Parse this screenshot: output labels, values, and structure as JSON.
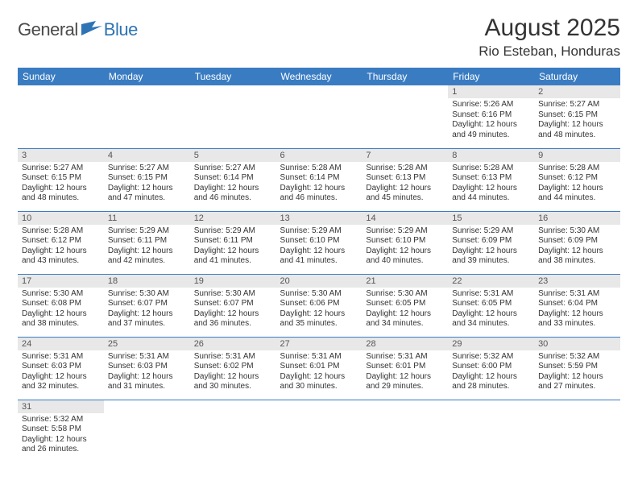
{
  "logo": {
    "general": "General",
    "blue": "Blue"
  },
  "title": "August 2025",
  "location": "Rio Esteban, Honduras",
  "colors": {
    "header_bg": "#3a7cc2",
    "header_text": "#ffffff",
    "daynum_bg": "#e8e8e8",
    "daynum_text": "#555555",
    "body_text": "#333333",
    "rule": "#3a7cc2",
    "logo_gray": "#4a4a4a",
    "logo_blue": "#2e74b5"
  },
  "weekdays": [
    "Sunday",
    "Monday",
    "Tuesday",
    "Wednesday",
    "Thursday",
    "Friday",
    "Saturday"
  ],
  "weeks": [
    [
      null,
      null,
      null,
      null,
      null,
      {
        "n": "1",
        "sr": "5:26 AM",
        "ss": "6:16 PM",
        "dl": "12 hours and 49 minutes."
      },
      {
        "n": "2",
        "sr": "5:27 AM",
        "ss": "6:15 PM",
        "dl": "12 hours and 48 minutes."
      }
    ],
    [
      {
        "n": "3",
        "sr": "5:27 AM",
        "ss": "6:15 PM",
        "dl": "12 hours and 48 minutes."
      },
      {
        "n": "4",
        "sr": "5:27 AM",
        "ss": "6:15 PM",
        "dl": "12 hours and 47 minutes."
      },
      {
        "n": "5",
        "sr": "5:27 AM",
        "ss": "6:14 PM",
        "dl": "12 hours and 46 minutes."
      },
      {
        "n": "6",
        "sr": "5:28 AM",
        "ss": "6:14 PM",
        "dl": "12 hours and 46 minutes."
      },
      {
        "n": "7",
        "sr": "5:28 AM",
        "ss": "6:13 PM",
        "dl": "12 hours and 45 minutes."
      },
      {
        "n": "8",
        "sr": "5:28 AM",
        "ss": "6:13 PM",
        "dl": "12 hours and 44 minutes."
      },
      {
        "n": "9",
        "sr": "5:28 AM",
        "ss": "6:12 PM",
        "dl": "12 hours and 44 minutes."
      }
    ],
    [
      {
        "n": "10",
        "sr": "5:28 AM",
        "ss": "6:12 PM",
        "dl": "12 hours and 43 minutes."
      },
      {
        "n": "11",
        "sr": "5:29 AM",
        "ss": "6:11 PM",
        "dl": "12 hours and 42 minutes."
      },
      {
        "n": "12",
        "sr": "5:29 AM",
        "ss": "6:11 PM",
        "dl": "12 hours and 41 minutes."
      },
      {
        "n": "13",
        "sr": "5:29 AM",
        "ss": "6:10 PM",
        "dl": "12 hours and 41 minutes."
      },
      {
        "n": "14",
        "sr": "5:29 AM",
        "ss": "6:10 PM",
        "dl": "12 hours and 40 minutes."
      },
      {
        "n": "15",
        "sr": "5:29 AM",
        "ss": "6:09 PM",
        "dl": "12 hours and 39 minutes."
      },
      {
        "n": "16",
        "sr": "5:30 AM",
        "ss": "6:09 PM",
        "dl": "12 hours and 38 minutes."
      }
    ],
    [
      {
        "n": "17",
        "sr": "5:30 AM",
        "ss": "6:08 PM",
        "dl": "12 hours and 38 minutes."
      },
      {
        "n": "18",
        "sr": "5:30 AM",
        "ss": "6:07 PM",
        "dl": "12 hours and 37 minutes."
      },
      {
        "n": "19",
        "sr": "5:30 AM",
        "ss": "6:07 PM",
        "dl": "12 hours and 36 minutes."
      },
      {
        "n": "20",
        "sr": "5:30 AM",
        "ss": "6:06 PM",
        "dl": "12 hours and 35 minutes."
      },
      {
        "n": "21",
        "sr": "5:30 AM",
        "ss": "6:05 PM",
        "dl": "12 hours and 34 minutes."
      },
      {
        "n": "22",
        "sr": "5:31 AM",
        "ss": "6:05 PM",
        "dl": "12 hours and 34 minutes."
      },
      {
        "n": "23",
        "sr": "5:31 AM",
        "ss": "6:04 PM",
        "dl": "12 hours and 33 minutes."
      }
    ],
    [
      {
        "n": "24",
        "sr": "5:31 AM",
        "ss": "6:03 PM",
        "dl": "12 hours and 32 minutes."
      },
      {
        "n": "25",
        "sr": "5:31 AM",
        "ss": "6:03 PM",
        "dl": "12 hours and 31 minutes."
      },
      {
        "n": "26",
        "sr": "5:31 AM",
        "ss": "6:02 PM",
        "dl": "12 hours and 30 minutes."
      },
      {
        "n": "27",
        "sr": "5:31 AM",
        "ss": "6:01 PM",
        "dl": "12 hours and 30 minutes."
      },
      {
        "n": "28",
        "sr": "5:31 AM",
        "ss": "6:01 PM",
        "dl": "12 hours and 29 minutes."
      },
      {
        "n": "29",
        "sr": "5:32 AM",
        "ss": "6:00 PM",
        "dl": "12 hours and 28 minutes."
      },
      {
        "n": "30",
        "sr": "5:32 AM",
        "ss": "5:59 PM",
        "dl": "12 hours and 27 minutes."
      }
    ],
    [
      {
        "n": "31",
        "sr": "5:32 AM",
        "ss": "5:58 PM",
        "dl": "12 hours and 26 minutes."
      },
      null,
      null,
      null,
      null,
      null,
      null
    ]
  ],
  "labels": {
    "sunrise": "Sunrise:",
    "sunset": "Sunset:",
    "daylight": "Daylight:"
  }
}
